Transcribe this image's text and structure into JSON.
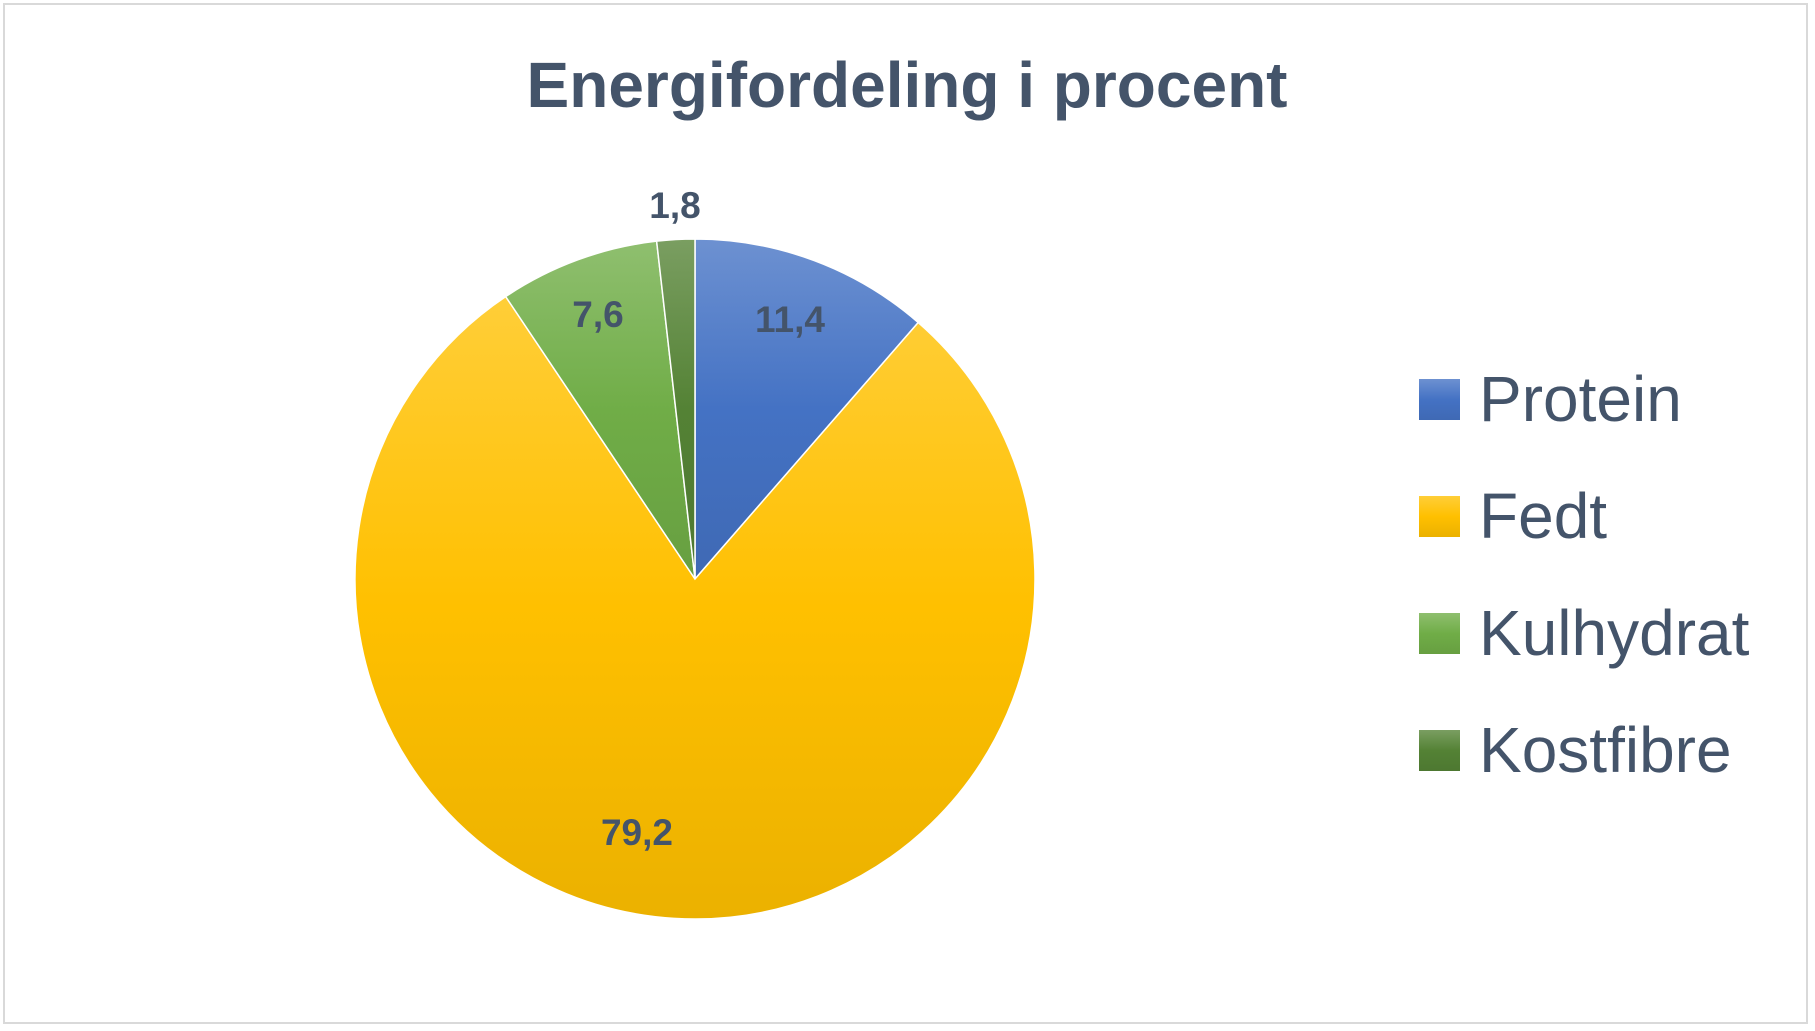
{
  "chart_data": {
    "type": "pie",
    "title": "Energifordeling i procent",
    "categories": [
      "Protein",
      "Fedt",
      "Kulhydrat",
      "Kostfibre"
    ],
    "values": [
      11.4,
      79.2,
      7.6,
      1.8
    ],
    "data_labels": [
      "11,4",
      "79,2",
      "7,6",
      "1,8"
    ],
    "colors": [
      "#4472c4",
      "#ffc000",
      "#70ad47",
      "#548235"
    ],
    "legend_position": "right"
  }
}
